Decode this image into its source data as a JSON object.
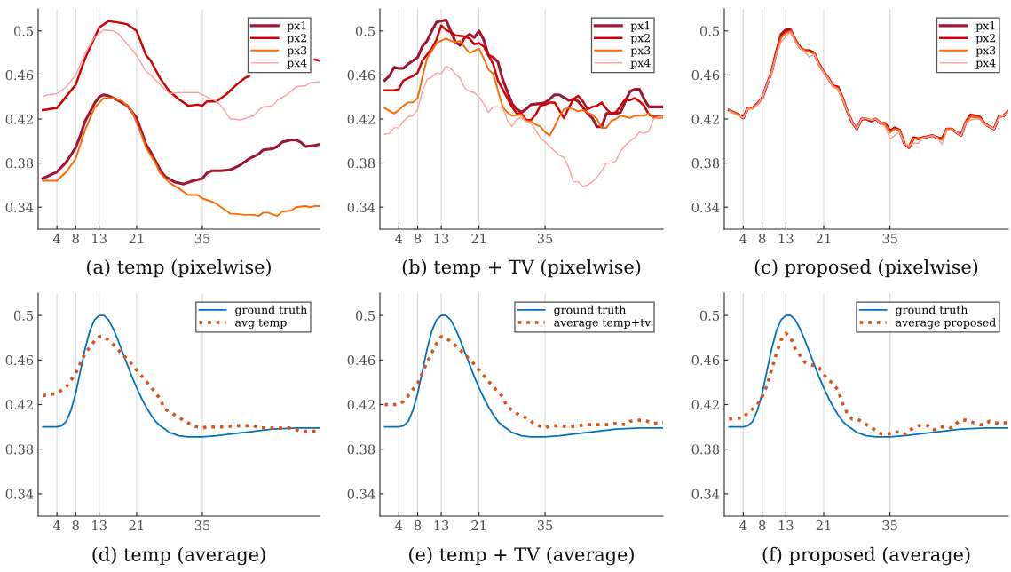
{
  "chart_data": [
    {
      "type": "line",
      "title": "(a) temp (pixelwise)",
      "xlim": [
        0,
        60
      ],
      "ylim": [
        0.32,
        0.52
      ],
      "xticks": [
        4,
        8,
        13,
        21,
        35
      ],
      "yticks": [
        0.34,
        0.38,
        0.42,
        0.46,
        0.5
      ],
      "grid": "x",
      "legend": "top right",
      "line_style": "solid",
      "series": [
        {
          "name": "px1",
          "color": "#a2142f",
          "x": [
            1,
            4,
            6,
            8,
            9,
            10,
            12,
            13,
            14,
            15,
            17,
            19,
            21,
            22,
            23,
            24,
            26,
            27,
            29,
            31,
            33,
            35,
            36,
            37,
            39,
            41,
            43,
            45,
            47,
            48,
            50,
            51,
            52,
            54,
            55,
            56,
            57,
            59,
            60
          ],
          "values": [
            0.366,
            0.372,
            0.381,
            0.394,
            0.405,
            0.418,
            0.434,
            0.44,
            0.442,
            0.441,
            0.437,
            0.432,
            0.421,
            0.409,
            0.397,
            0.39,
            0.374,
            0.368,
            0.363,
            0.361,
            0.364,
            0.366,
            0.371,
            0.373,
            0.373,
            0.374,
            0.378,
            0.384,
            0.388,
            0.392,
            0.393,
            0.395,
            0.399,
            0.401,
            0.401,
            0.399,
            0.395,
            0.396,
            0.397
          ]
        },
        {
          "name": "px2",
          "color": "#d40000",
          "x": [
            1,
            4,
            8,
            10,
            13,
            15,
            18,
            19,
            21,
            23,
            24,
            26,
            28,
            30,
            32,
            34,
            35,
            36,
            38,
            40,
            42,
            44,
            45,
            47,
            59,
            60
          ],
          "values": [
            0.428,
            0.43,
            0.451,
            0.475,
            0.503,
            0.509,
            0.507,
            0.506,
            0.5,
            0.478,
            0.473,
            0.457,
            0.445,
            0.438,
            0.432,
            0.433,
            0.432,
            0.436,
            0.436,
            0.442,
            0.45,
            0.457,
            0.459,
            null,
            0.474,
            0.473
          ]
        },
        {
          "name": "px3",
          "color": "#ff6a00",
          "x": [
            1,
            4,
            6,
            8,
            10,
            12,
            14,
            16,
            18,
            20,
            22,
            23,
            25,
            26,
            28,
            30,
            32,
            34,
            35,
            37,
            38,
            40,
            41,
            42,
            44,
            46,
            47,
            48,
            49,
            51,
            52,
            54,
            55,
            57,
            58,
            59,
            60
          ],
          "values": [
            0.364,
            0.364,
            0.372,
            0.384,
            0.41,
            0.43,
            0.439,
            0.439,
            0.436,
            0.427,
            0.406,
            0.394,
            0.38,
            0.371,
            0.362,
            0.357,
            0.351,
            0.351,
            0.348,
            0.345,
            0.343,
            0.337,
            0.334,
            0.334,
            0.333,
            0.333,
            0.332,
            0.335,
            0.335,
            0.332,
            0.336,
            0.337,
            0.34,
            0.341,
            0.34,
            0.341,
            0.341
          ]
        },
        {
          "name": "px4",
          "color": "#ff9e9e",
          "x": [
            1,
            2,
            4,
            6,
            8,
            10,
            12,
            14,
            16,
            17,
            19,
            21,
            23,
            24,
            26,
            28,
            30,
            32,
            34,
            36,
            38,
            39,
            41,
            42,
            43,
            46,
            47,
            48,
            50,
            51,
            53,
            55,
            56,
            57,
            58,
            60
          ],
          "values": [
            0.44,
            0.442,
            0.443,
            0.449,
            0.46,
            0.48,
            0.494,
            0.501,
            0.5,
            0.498,
            0.488,
            0.478,
            0.463,
            0.46,
            0.451,
            0.443,
            0.444,
            0.444,
            0.444,
            0.44,
            0.436,
            0.432,
            0.42,
            0.42,
            0.419,
            0.423,
            0.428,
            0.431,
            0.432,
            0.437,
            0.442,
            0.449,
            0.45,
            0.45,
            0.453,
            0.454
          ]
        }
      ]
    },
    {
      "type": "line",
      "title": "(b) temp + TV (pixelwise)",
      "xlim": [
        0,
        60
      ],
      "ylim": [
        0.32,
        0.52
      ],
      "xticks": [
        4,
        8,
        13,
        21,
        35
      ],
      "yticks": [
        0.34,
        0.38,
        0.42,
        0.46,
        0.5
      ],
      "grid": "x",
      "legend": "top right",
      "line_style": "solid",
      "series": [
        {
          "name": "px1",
          "color": "#a2142f",
          "x": [
            1,
            2,
            3,
            4,
            5,
            6,
            7,
            8,
            9,
            10,
            11,
            12,
            14,
            15,
            16,
            17,
            18,
            19,
            20,
            21,
            22,
            23,
            24,
            25,
            26,
            28,
            29,
            30,
            31,
            32,
            34,
            35,
            36,
            37,
            38,
            40,
            41,
            42,
            44,
            45,
            46,
            47,
            48,
            49,
            50,
            51,
            52,
            53,
            54,
            55,
            56,
            57,
            58,
            59,
            60
          ],
          "values": [
            0.455,
            0.459,
            0.467,
            0.466,
            0.466,
            0.47,
            0.473,
            0.476,
            0.486,
            0.491,
            0.5,
            0.508,
            0.51,
            0.5,
            0.49,
            0.487,
            0.494,
            0.497,
            0.494,
            0.5,
            0.492,
            0.478,
            0.476,
            0.472,
            0.456,
            0.434,
            0.429,
            0.426,
            0.429,
            0.433,
            0.434,
            0.435,
            0.438,
            0.442,
            0.442,
            0.437,
            0.438,
            0.436,
            0.425,
            0.421,
            0.413,
            0.413,
            0.425,
            0.425,
            0.425,
            0.426,
            0.436,
            0.445,
            0.447,
            0.447,
            0.438,
            0.431,
            0.431,
            0.431,
            0.431
          ]
        },
        {
          "name": "px2",
          "color": "#d40000",
          "x": [
            1,
            3,
            4,
            5,
            6,
            7,
            8,
            9,
            11,
            12,
            13,
            14,
            15,
            16,
            18,
            19,
            20,
            21,
            22,
            23,
            24,
            25,
            27,
            28,
            29,
            30,
            31,
            32,
            33,
            34,
            35,
            36,
            37,
            38,
            39,
            40,
            41,
            42,
            43,
            44,
            45,
            46,
            47,
            48,
            49,
            50,
            51,
            52,
            53,
            54,
            55,
            56,
            57,
            58,
            60
          ],
          "values": [
            0.446,
            0.446,
            0.447,
            0.455,
            0.457,
            0.459,
            0.462,
            0.473,
            0.484,
            0.492,
            0.505,
            0.501,
            0.499,
            0.496,
            0.495,
            0.493,
            0.488,
            0.489,
            0.486,
            0.478,
            0.47,
            0.455,
            0.439,
            0.431,
            0.425,
            0.425,
            0.419,
            0.419,
            0.424,
            0.432,
            0.433,
            0.435,
            0.435,
            0.428,
            0.421,
            0.43,
            0.438,
            0.441,
            0.436,
            0.429,
            0.431,
            0.432,
            0.435,
            0.429,
            0.425,
            0.426,
            0.432,
            0.438,
            0.437,
            0.439,
            0.436,
            0.432,
            0.424,
            0.422,
            0.422
          ]
        },
        {
          "name": "px3",
          "color": "#ff6a00",
          "x": [
            1,
            3,
            4,
            5,
            6,
            7,
            8,
            9,
            10,
            11,
            12,
            13,
            14,
            15,
            16,
            17,
            18,
            19,
            20,
            21,
            22,
            23,
            24,
            25,
            26,
            27,
            28,
            30,
            31,
            32,
            33,
            34,
            35,
            36,
            37,
            38,
            39,
            40,
            41,
            42,
            43,
            44,
            45,
            46,
            47,
            48,
            49,
            50,
            51,
            52,
            53,
            54,
            55,
            56,
            57,
            58,
            59,
            60
          ],
          "values": [
            0.43,
            0.425,
            0.428,
            0.432,
            0.435,
            0.435,
            0.439,
            0.458,
            0.475,
            0.482,
            0.489,
            0.491,
            0.493,
            0.491,
            0.49,
            0.491,
            0.485,
            0.48,
            0.482,
            0.484,
            0.475,
            0.465,
            0.461,
            0.446,
            0.431,
            0.426,
            0.423,
            0.424,
            0.418,
            0.418,
            0.415,
            0.413,
            0.408,
            0.405,
            0.413,
            0.422,
            0.429,
            0.43,
            0.429,
            0.427,
            0.428,
            0.426,
            0.424,
            0.42,
            0.412,
            0.412,
            0.418,
            0.42,
            0.423,
            0.422,
            0.421,
            0.423,
            0.423,
            0.423,
            0.425,
            0.421,
            0.421,
            0.421
          ]
        },
        {
          "name": "px4",
          "color": "#ff9e9e",
          "x": [
            1,
            2,
            3,
            4,
            5,
            6,
            7,
            8,
            9,
            10,
            11,
            12,
            13,
            14,
            15,
            16,
            17,
            18,
            19,
            20,
            21,
            22,
            23,
            24,
            25,
            26,
            27,
            28,
            29,
            30,
            31,
            32,
            33,
            34,
            35,
            36,
            37,
            38,
            39,
            40,
            41,
            42,
            43,
            44,
            45,
            46,
            47,
            48,
            49,
            50,
            51,
            52,
            53,
            54,
            55,
            56,
            57,
            58,
            59,
            60
          ],
          "values": [
            0.406,
            0.407,
            0.412,
            0.412,
            0.418,
            0.422,
            0.423,
            0.429,
            0.445,
            0.456,
            0.458,
            0.462,
            0.461,
            0.468,
            0.466,
            0.461,
            0.457,
            0.448,
            0.445,
            0.444,
            0.44,
            0.434,
            0.426,
            0.431,
            0.431,
            0.43,
            0.419,
            0.413,
            0.42,
            0.421,
            0.418,
            0.416,
            0.41,
            0.403,
            0.399,
            0.395,
            0.391,
            0.387,
            0.385,
            0.376,
            0.363,
            0.363,
            0.359,
            0.36,
            0.363,
            0.367,
            0.373,
            0.38,
            0.38,
            0.382,
            0.391,
            0.396,
            0.4,
            0.403,
            0.408,
            0.407,
            0.409,
            0.42,
            0.422,
            0.422
          ]
        }
      ]
    },
    {
      "type": "line",
      "title": "(c) proposed (pixelwise)",
      "xlim": [
        0,
        60
      ],
      "ylim": [
        0.32,
        0.52
      ],
      "xticks": [
        4,
        8,
        13,
        21,
        35
      ],
      "yticks": [
        0.34,
        0.38,
        0.42,
        0.46,
        0.5
      ],
      "grid": "x",
      "legend": "top right",
      "line_style": "solid",
      "x": [
        1,
        2,
        3,
        4,
        5,
        6,
        7,
        8,
        9,
        10,
        11,
        12,
        13,
        14,
        15,
        16,
        17,
        18,
        19,
        20,
        21,
        22,
        23,
        24,
        25,
        26,
        27,
        28,
        29,
        30,
        31,
        32,
        33,
        34,
        35,
        36,
        37,
        38,
        39,
        40,
        41,
        42,
        43,
        44,
        45,
        46,
        47,
        48,
        49,
        50,
        51,
        52,
        53,
        54,
        55,
        56,
        57,
        58,
        59,
        60
      ],
      "series": [
        {
          "name": "px1",
          "color": "#a2142f",
          "values": [
            0.428,
            0.426,
            0.424,
            0.421,
            0.43,
            0.43,
            0.434,
            0.439,
            0.451,
            0.463,
            0.481,
            0.497,
            0.501,
            0.501,
            0.492,
            0.485,
            0.482,
            0.482,
            0.48,
            0.47,
            0.463,
            0.457,
            0.45,
            0.449,
            0.439,
            0.427,
            0.417,
            0.411,
            0.42,
            0.42,
            0.418,
            0.42,
            0.416,
            0.416,
            0.409,
            0.412,
            0.41,
            0.398,
            0.394,
            0.403,
            0.402,
            0.403,
            0.404,
            0.405,
            0.403,
            0.402,
            0.411,
            0.411,
            0.408,
            0.405,
            0.417,
            0.423,
            0.422,
            0.421,
            0.416,
            0.413,
            0.411,
            0.422,
            0.423,
            0.427
          ]
        },
        {
          "name": "px2",
          "color": "#d40000",
          "values": [
            0.428,
            0.426,
            0.424,
            0.421,
            0.43,
            0.43,
            0.434,
            0.439,
            0.451,
            0.463,
            0.481,
            0.496,
            0.5,
            0.5,
            0.492,
            0.485,
            0.482,
            0.482,
            0.48,
            0.47,
            0.463,
            0.457,
            0.45,
            0.449,
            0.439,
            0.427,
            0.417,
            0.411,
            0.42,
            0.42,
            0.419,
            0.42,
            0.416,
            0.416,
            0.409,
            0.412,
            0.41,
            0.398,
            0.394,
            0.403,
            0.402,
            0.403,
            0.404,
            0.405,
            0.403,
            0.402,
            0.411,
            0.411,
            0.408,
            0.405,
            0.417,
            0.424,
            0.423,
            0.422,
            0.416,
            0.413,
            0.411,
            0.422,
            0.423,
            0.427
          ]
        },
        {
          "name": "px3",
          "color": "#ff6a00",
          "values": [
            0.428,
            0.426,
            0.424,
            0.421,
            0.43,
            0.43,
            0.434,
            0.439,
            0.451,
            0.463,
            0.48,
            0.494,
            0.498,
            0.5,
            0.492,
            0.485,
            0.482,
            0.481,
            0.48,
            0.47,
            0.463,
            0.457,
            0.45,
            0.448,
            0.439,
            0.427,
            0.417,
            0.411,
            0.42,
            0.42,
            0.419,
            0.42,
            0.416,
            0.415,
            0.408,
            0.411,
            0.41,
            0.398,
            0.394,
            0.402,
            0.402,
            0.403,
            0.404,
            0.405,
            0.403,
            0.401,
            0.411,
            0.411,
            0.408,
            0.405,
            0.417,
            0.422,
            0.422,
            0.421,
            0.416,
            0.413,
            0.411,
            0.422,
            0.423,
            0.427
          ]
        },
        {
          "name": "px4",
          "color": "#ff9e9e",
          "values": [
            0.427,
            0.425,
            0.423,
            0.421,
            0.429,
            0.429,
            0.433,
            0.439,
            0.451,
            0.462,
            0.478,
            0.49,
            0.495,
            0.499,
            0.49,
            0.484,
            0.481,
            0.476,
            0.479,
            0.469,
            0.462,
            0.456,
            0.449,
            0.447,
            0.438,
            0.427,
            0.417,
            0.411,
            0.42,
            0.421,
            0.419,
            0.42,
            0.416,
            0.413,
            0.402,
            0.405,
            0.408,
            0.398,
            0.396,
            0.398,
            0.398,
            0.403,
            0.404,
            0.405,
            0.403,
            0.397,
            0.41,
            0.41,
            0.408,
            0.405,
            0.416,
            0.419,
            0.42,
            0.42,
            0.415,
            0.413,
            0.411,
            0.421,
            0.423,
            0.426
          ]
        }
      ]
    },
    {
      "type": "line",
      "title": "(d) temp (average)",
      "xlim": [
        0,
        60
      ],
      "ylim": [
        0.32,
        0.52
      ],
      "xticks": [
        4,
        8,
        13,
        21,
        35
      ],
      "yticks": [
        0.34,
        0.38,
        0.42,
        0.46,
        0.5
      ],
      "grid": "x",
      "legend": "top right",
      "series": [
        {
          "name": "ground truth",
          "color": "#0072bd",
          "line_style": "solid",
          "x": [
            1,
            4,
            5,
            6,
            7,
            8,
            9,
            10,
            11,
            12,
            13,
            14,
            15,
            16,
            17,
            18,
            19,
            20,
            21,
            22,
            23,
            24,
            25,
            26,
            27,
            28,
            30,
            32,
            35,
            38,
            42,
            46,
            50,
            55,
            60
          ],
          "values": [
            0.4,
            0.4,
            0.401,
            0.405,
            0.415,
            0.43,
            0.45,
            0.47,
            0.486,
            0.496,
            0.5,
            0.5,
            0.496,
            0.488,
            0.478,
            0.467,
            0.456,
            0.445,
            0.435,
            0.426,
            0.418,
            0.411,
            0.405,
            0.401,
            0.398,
            0.395,
            0.392,
            0.391,
            0.391,
            0.392,
            0.394,
            0.396,
            0.398,
            0.399,
            0.399
          ]
        },
        {
          "name": "avg temp",
          "color": "#d95319",
          "line_style": "dotted",
          "x": [
            1,
            4,
            6,
            8,
            10,
            12,
            13,
            14,
            16,
            18,
            20,
            22,
            24,
            26,
            27,
            29,
            31,
            33,
            35,
            36,
            38,
            40,
            42,
            44,
            46,
            47,
            48,
            50,
            52,
            54,
            56,
            58,
            60
          ],
          "values": [
            0.428,
            0.43,
            0.436,
            0.448,
            0.466,
            0.477,
            0.481,
            0.481,
            0.474,
            0.465,
            0.456,
            0.446,
            0.436,
            0.425,
            0.416,
            0.411,
            0.406,
            0.401,
            0.399,
            0.4,
            0.4,
            0.4,
            0.401,
            0.401,
            0.401,
            0.399,
            0.399,
            0.399,
            0.399,
            0.399,
            0.396,
            0.396,
            0.396
          ]
        }
      ]
    },
    {
      "type": "line",
      "title": "(e) temp + TV (average)",
      "xlim": [
        0,
        60
      ],
      "ylim": [
        0.32,
        0.52
      ],
      "xticks": [
        4,
        8,
        13,
        21,
        35
      ],
      "yticks": [
        0.34,
        0.38,
        0.42,
        0.46,
        0.5
      ],
      "grid": "x",
      "legend": "top right",
      "series": [
        {
          "name": "ground truth",
          "color": "#0072bd",
          "line_style": "solid",
          "x": [
            1,
            4,
            5,
            6,
            7,
            8,
            9,
            10,
            11,
            12,
            13,
            14,
            15,
            16,
            17,
            18,
            19,
            20,
            21,
            22,
            23,
            24,
            25,
            26,
            27,
            28,
            30,
            32,
            35,
            38,
            42,
            46,
            50,
            55,
            60
          ],
          "values": [
            0.4,
            0.4,
            0.401,
            0.405,
            0.415,
            0.43,
            0.45,
            0.47,
            0.486,
            0.496,
            0.5,
            0.5,
            0.496,
            0.488,
            0.478,
            0.467,
            0.456,
            0.445,
            0.435,
            0.426,
            0.418,
            0.411,
            0.405,
            0.401,
            0.398,
            0.395,
            0.392,
            0.391,
            0.391,
            0.392,
            0.394,
            0.396,
            0.398,
            0.399,
            0.399
          ]
        },
        {
          "name": "average temp+tv",
          "color": "#d95319",
          "line_style": "dotted",
          "x": [
            1,
            4,
            5,
            6,
            8,
            10,
            12,
            13,
            14,
            16,
            18,
            20,
            22,
            24,
            26,
            27,
            29,
            31,
            33,
            35,
            36,
            38,
            40,
            42,
            44,
            46,
            48,
            50,
            52,
            53,
            55,
            56,
            58,
            60
          ],
          "values": [
            0.42,
            0.42,
            0.423,
            0.428,
            0.439,
            0.458,
            0.475,
            0.481,
            0.48,
            0.473,
            0.465,
            0.456,
            0.446,
            0.436,
            0.427,
            0.418,
            0.412,
            0.408,
            0.402,
            0.399,
            0.401,
            0.401,
            0.4,
            0.401,
            0.402,
            0.402,
            0.402,
            0.403,
            0.402,
            0.405,
            0.406,
            0.406,
            0.403,
            0.404
          ]
        }
      ]
    },
    {
      "type": "line",
      "title": "(f) proposed (average)",
      "xlim": [
        0,
        60
      ],
      "ylim": [
        0.32,
        0.52
      ],
      "xticks": [
        4,
        8,
        13,
        21,
        35
      ],
      "yticks": [
        0.34,
        0.38,
        0.42,
        0.46,
        0.5
      ],
      "grid": "x",
      "legend": "top right",
      "series": [
        {
          "name": "ground truth",
          "color": "#0072bd",
          "line_style": "solid",
          "x": [
            1,
            4,
            5,
            6,
            7,
            8,
            9,
            10,
            11,
            12,
            13,
            14,
            15,
            16,
            17,
            18,
            19,
            20,
            21,
            22,
            23,
            24,
            25,
            26,
            27,
            28,
            30,
            32,
            35,
            38,
            42,
            46,
            50,
            55,
            60
          ],
          "values": [
            0.4,
            0.4,
            0.401,
            0.405,
            0.415,
            0.43,
            0.45,
            0.47,
            0.486,
            0.496,
            0.5,
            0.5,
            0.496,
            0.488,
            0.478,
            0.467,
            0.456,
            0.445,
            0.435,
            0.426,
            0.418,
            0.411,
            0.405,
            0.401,
            0.398,
            0.395,
            0.392,
            0.391,
            0.391,
            0.392,
            0.394,
            0.396,
            0.398,
            0.399,
            0.399
          ]
        },
        {
          "name": "average proposed",
          "color": "#d95319",
          "line_style": "dotted",
          "x": [
            1,
            4,
            5,
            6,
            7,
            8,
            9,
            10,
            11,
            12,
            13,
            14,
            15,
            16,
            17,
            18,
            19,
            20,
            21,
            22,
            23,
            24,
            25,
            26,
            27,
            28,
            29,
            30,
            31,
            32,
            33,
            34,
            35,
            36,
            37,
            38,
            39,
            40,
            41,
            42,
            43,
            44,
            45,
            46,
            47,
            48,
            49,
            50,
            51,
            52,
            53,
            54,
            55,
            56,
            57,
            58,
            60
          ],
          "values": [
            0.407,
            0.408,
            0.413,
            0.416,
            0.42,
            0.427,
            0.437,
            0.451,
            0.466,
            0.478,
            0.484,
            0.48,
            0.47,
            0.464,
            0.458,
            0.456,
            0.455,
            0.453,
            0.447,
            0.442,
            0.439,
            0.433,
            0.421,
            0.412,
            0.407,
            0.407,
            0.405,
            0.402,
            0.399,
            0.397,
            0.394,
            0.393,
            0.394,
            0.396,
            0.395,
            0.393,
            0.397,
            0.399,
            0.401,
            0.401,
            0.401,
            0.397,
            0.398,
            0.4,
            0.4,
            0.399,
            0.403,
            0.406,
            0.406,
            0.405,
            0.403,
            0.402,
            0.402,
            0.405,
            0.404,
            0.403,
            0.404
          ]
        }
      ]
    }
  ]
}
